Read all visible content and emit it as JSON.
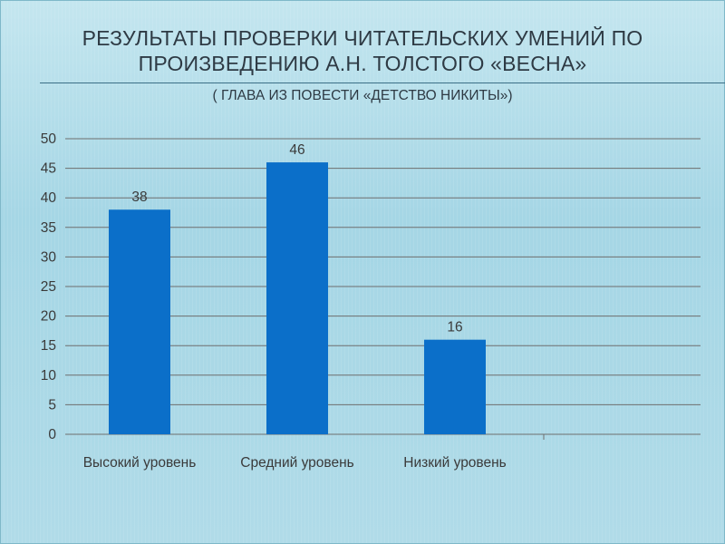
{
  "slide": {
    "title_line1": "РЕЗУЛЬТАТЫ ПРОВЕРКИ ЧИТАТЕЛЬСКИХ УМЕНИЙ ПО",
    "title_line2": "ПРОИЗВЕДЕНИЮ А.Н. ТОЛСТОГО «ВЕСНА»",
    "subtitle": "( ГЛАВА ИЗ ПОВЕСТИ «ДЕТСТВО НИКИТЫ»)"
  },
  "chart_data": {
    "type": "bar",
    "categories": [
      "Высокий уровень",
      "Средний уровень",
      "Низкий уровень"
    ],
    "values": [
      38,
      46,
      16
    ],
    "data_labels": [
      "38",
      "46",
      "16"
    ],
    "ylim": [
      0,
      50
    ],
    "yticks": [
      "0",
      "5",
      "10",
      "15",
      "20",
      "25",
      "30",
      "35",
      "40",
      "45",
      "50"
    ],
    "grid": true,
    "legend": "none",
    "bar_color": "#0b6fc9",
    "gridline_color": "#6e6e6e"
  }
}
